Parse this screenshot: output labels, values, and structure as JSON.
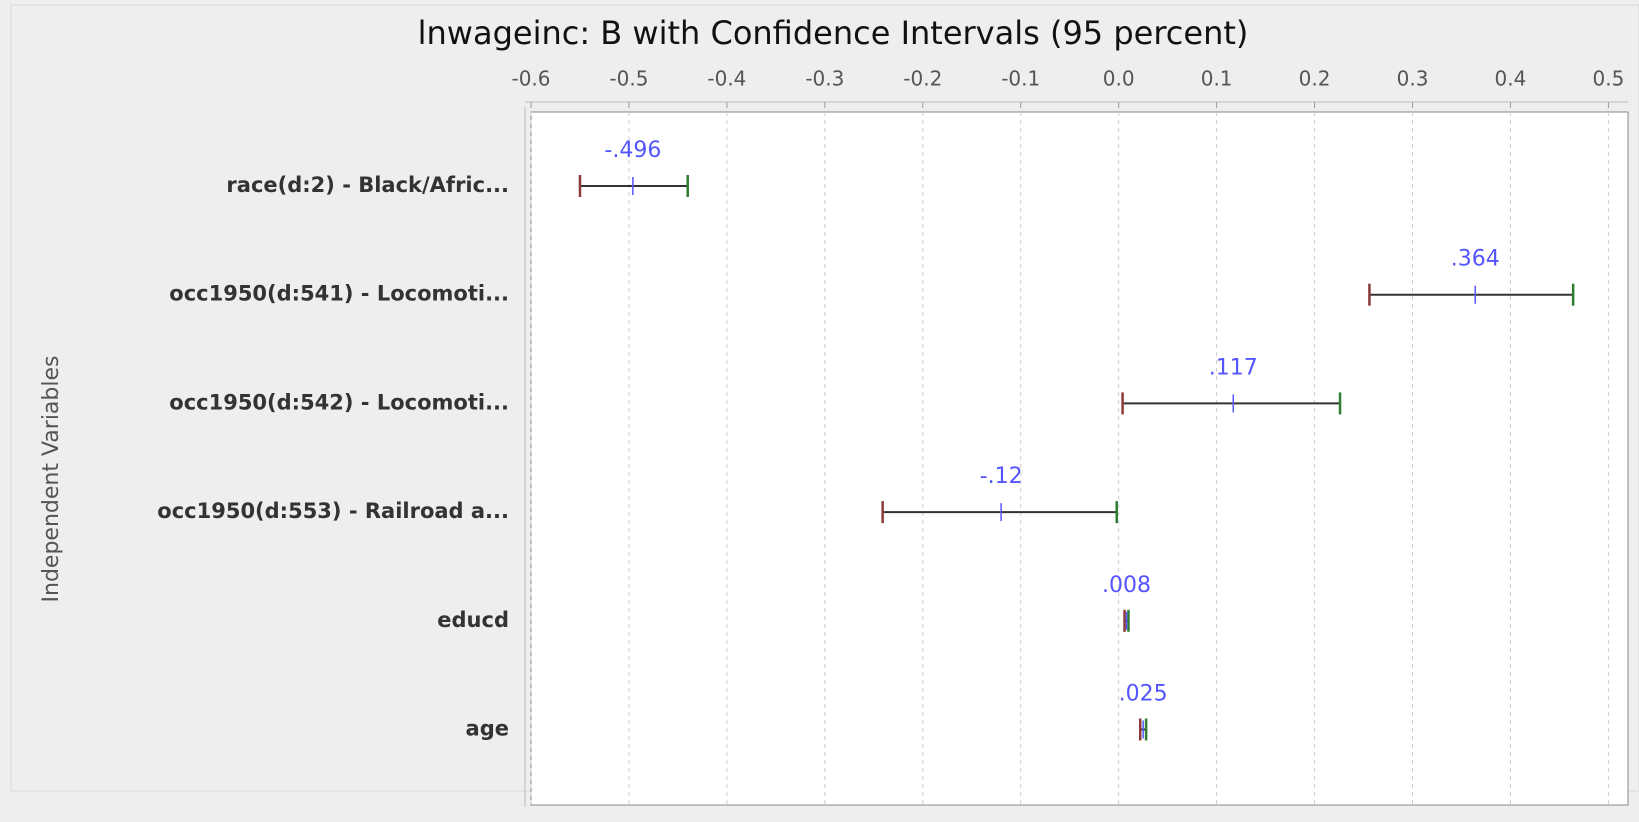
{
  "chart_data": {
    "type": "errorbar",
    "title": "lnwageinc: B with Confidence Intervals (95 percent)",
    "y_label": "Independent Variables",
    "categories": [
      "race(d:2) - Black/Afric...",
      "occ1950(d:541) - Locomoti...",
      "occ1950(d:542) - Locomoti...",
      "occ1950(d:553) - Railroad a...",
      "educd",
      "age"
    ],
    "values": [
      -0.496,
      0.364,
      0.117,
      -0.12,
      0.008,
      0.025
    ],
    "value_labels": [
      "-.496",
      ".364",
      ".117",
      "-.12",
      ".008",
      ".025"
    ],
    "lower": [
      -0.55,
      0.256,
      0.004,
      -0.241,
      0.006,
      0.022
    ],
    "upper": [
      -0.44,
      0.464,
      0.226,
      -0.002,
      0.01,
      0.028
    ],
    "color": "#5555ff",
    "lower_color": "#8b3a3a",
    "upper_color": "#2e7d32",
    "xlim": [
      -0.6,
      0.52
    ],
    "xticks": [
      -0.6,
      -0.5,
      -0.4,
      -0.3,
      -0.2,
      -0.1,
      {
        "value": 0,
        "label": "0.0"
      },
      0.1,
      0.2,
      0.3,
      0.4,
      0.5
    ],
    "grid": true
  }
}
